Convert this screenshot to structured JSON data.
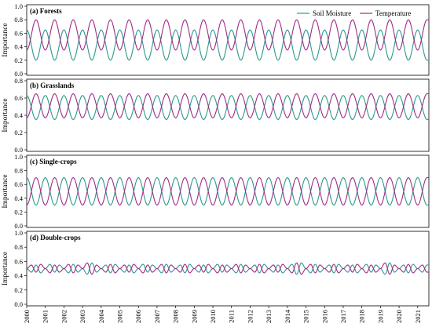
{
  "chart_data": [
    {
      "type": "line",
      "title": "(a) Forests",
      "ylabel": "Importance",
      "ylim": [
        0,
        1
      ],
      "yticks": [
        "0.0",
        "0.2",
        "0.4",
        "0.6",
        "0.8",
        "1.0"
      ],
      "x_range": [
        2000,
        2021.6
      ],
      "legend": {
        "placement": "top-right",
        "entries": [
          "Soil Moisture",
          "Temperature"
        ]
      },
      "pattern": "annual cycle; Temperature peaks mid-year, Soil Moisture mirrors it; values sampled every half year",
      "x": [
        2000.0,
        2000.5,
        2001.0,
        2001.5,
        2002.0,
        2002.5,
        2003.0,
        2003.5,
        2004.0,
        2004.5,
        2005.0,
        2005.5,
        2006.0,
        2006.5,
        2007.0,
        2007.5,
        2008.0,
        2008.5,
        2009.0,
        2009.5,
        2010.0,
        2010.5,
        2011.0,
        2011.5,
        2012.0,
        2012.5,
        2013.0,
        2013.5,
        2014.0,
        2014.5,
        2015.0,
        2015.5,
        2016.0,
        2016.5,
        2017.0,
        2017.5,
        2018.0,
        2018.5,
        2019.0,
        2019.5,
        2020.0,
        2020.5,
        2021.0,
        2021.5
      ],
      "series": [
        {
          "name": "Soil Moisture",
          "color": "#2a9a8a",
          "values": [
            0.65,
            0.2,
            0.65,
            0.2,
            0.65,
            0.2,
            0.65,
            0.2,
            0.65,
            0.2,
            0.65,
            0.2,
            0.65,
            0.2,
            0.65,
            0.2,
            0.65,
            0.2,
            0.65,
            0.2,
            0.65,
            0.2,
            0.65,
            0.2,
            0.65,
            0.2,
            0.65,
            0.2,
            0.65,
            0.2,
            0.65,
            0.2,
            0.65,
            0.2,
            0.65,
            0.2,
            0.65,
            0.2,
            0.65,
            0.2,
            0.65,
            0.2,
            0.65,
            0.2
          ]
        },
        {
          "name": "Temperature",
          "color": "#a02a8a",
          "values": [
            0.35,
            0.8,
            0.35,
            0.8,
            0.35,
            0.8,
            0.35,
            0.8,
            0.35,
            0.8,
            0.35,
            0.8,
            0.35,
            0.8,
            0.35,
            0.8,
            0.35,
            0.8,
            0.35,
            0.8,
            0.35,
            0.8,
            0.35,
            0.8,
            0.35,
            0.8,
            0.35,
            0.8,
            0.35,
            0.8,
            0.35,
            0.8,
            0.35,
            0.8,
            0.35,
            0.8,
            0.35,
            0.8,
            0.35,
            0.8,
            0.35,
            0.8,
            0.35,
            0.8
          ]
        }
      ]
    },
    {
      "type": "line",
      "title": "(b) Grasslands",
      "ylabel": "Importance",
      "ylim": [
        0,
        0.8
      ],
      "yticks": [
        "0.0",
        "0.2",
        "0.4",
        "0.6",
        "0.8"
      ],
      "x_range": [
        2000,
        2021.6
      ],
      "x": [
        2000.0,
        2000.5,
        2001.0,
        2001.5,
        2002.0,
        2002.5,
        2003.0,
        2003.5,
        2004.0,
        2004.5,
        2005.0,
        2005.5,
        2006.0,
        2006.5,
        2007.0,
        2007.5,
        2008.0,
        2008.5,
        2009.0,
        2009.5,
        2010.0,
        2010.5,
        2011.0,
        2011.5,
        2012.0,
        2012.5,
        2013.0,
        2013.5,
        2014.0,
        2014.5,
        2015.0,
        2015.5,
        2016.0,
        2016.5,
        2017.0,
        2017.5,
        2018.0,
        2018.5,
        2019.0,
        2019.5,
        2020.0,
        2020.5,
        2021.0,
        2021.5
      ],
      "series": [
        {
          "name": "Soil Moisture",
          "color": "#2a9a8a",
          "values": [
            0.63,
            0.35,
            0.63,
            0.35,
            0.63,
            0.35,
            0.63,
            0.35,
            0.63,
            0.35,
            0.63,
            0.35,
            0.63,
            0.35,
            0.63,
            0.35,
            0.63,
            0.35,
            0.63,
            0.35,
            0.63,
            0.35,
            0.63,
            0.35,
            0.63,
            0.35,
            0.63,
            0.35,
            0.63,
            0.35,
            0.63,
            0.35,
            0.63,
            0.35,
            0.63,
            0.35,
            0.63,
            0.35,
            0.63,
            0.35,
            0.63,
            0.35,
            0.63,
            0.35
          ]
        },
        {
          "name": "Temperature",
          "color": "#a02a8a",
          "values": [
            0.37,
            0.65,
            0.37,
            0.65,
            0.37,
            0.65,
            0.37,
            0.65,
            0.37,
            0.65,
            0.37,
            0.65,
            0.37,
            0.65,
            0.37,
            0.65,
            0.37,
            0.65,
            0.37,
            0.65,
            0.37,
            0.65,
            0.37,
            0.65,
            0.37,
            0.65,
            0.37,
            0.65,
            0.37,
            0.65,
            0.37,
            0.65,
            0.37,
            0.65,
            0.37,
            0.65,
            0.37,
            0.65,
            0.37,
            0.65,
            0.37,
            0.65,
            0.37,
            0.65
          ]
        }
      ]
    },
    {
      "type": "line",
      "title": "(c) Single-crops",
      "ylabel": "Importance",
      "ylim": [
        0,
        1
      ],
      "yticks": [
        "0.0",
        "0.2",
        "0.4",
        "0.6",
        "0.8",
        "1.0"
      ],
      "x_range": [
        2000,
        2021.6
      ],
      "x": [
        2000.0,
        2000.5,
        2001.0,
        2001.5,
        2002.0,
        2002.5,
        2003.0,
        2003.5,
        2004.0,
        2004.5,
        2005.0,
        2005.5,
        2006.0,
        2006.5,
        2007.0,
        2007.5,
        2008.0,
        2008.5,
        2009.0,
        2009.5,
        2010.0,
        2010.5,
        2011.0,
        2011.5,
        2012.0,
        2012.5,
        2013.0,
        2013.5,
        2014.0,
        2014.5,
        2015.0,
        2015.5,
        2016.0,
        2016.5,
        2017.0,
        2017.5,
        2018.0,
        2018.5,
        2019.0,
        2019.5,
        2020.0,
        2020.5,
        2021.0,
        2021.5
      ],
      "series": [
        {
          "name": "Soil Moisture",
          "color": "#2a9a8a",
          "values": [
            0.7,
            0.3,
            0.7,
            0.3,
            0.7,
            0.3,
            0.7,
            0.3,
            0.7,
            0.3,
            0.7,
            0.3,
            0.7,
            0.3,
            0.7,
            0.3,
            0.7,
            0.3,
            0.7,
            0.3,
            0.7,
            0.3,
            0.7,
            0.3,
            0.7,
            0.3,
            0.7,
            0.3,
            0.7,
            0.3,
            0.7,
            0.3,
            0.7,
            0.3,
            0.7,
            0.3,
            0.7,
            0.3,
            0.7,
            0.3,
            0.7,
            0.3,
            0.7,
            0.3
          ]
        },
        {
          "name": "Temperature",
          "color": "#a02a8a",
          "values": [
            0.3,
            0.7,
            0.3,
            0.7,
            0.3,
            0.7,
            0.3,
            0.7,
            0.3,
            0.7,
            0.3,
            0.7,
            0.3,
            0.7,
            0.3,
            0.7,
            0.3,
            0.7,
            0.3,
            0.7,
            0.3,
            0.7,
            0.3,
            0.7,
            0.3,
            0.7,
            0.3,
            0.7,
            0.3,
            0.7,
            0.3,
            0.7,
            0.3,
            0.7,
            0.3,
            0.7,
            0.3,
            0.7,
            0.3,
            0.7,
            0.3,
            0.7,
            0.3,
            0.7
          ]
        }
      ]
    },
    {
      "type": "line",
      "title": "(d) Double-crops",
      "ylabel": "Importance",
      "ylim": [
        0,
        1
      ],
      "yticks": [
        "0.0",
        "0.2",
        "0.4",
        "0.6",
        "0.8",
        "1.0"
      ],
      "x_range": [
        2000,
        2021.6
      ],
      "xlabel": "",
      "xticks": [
        "2000",
        "2001",
        "2002",
        "2003",
        "2004",
        "2005",
        "2006",
        "2007",
        "2008",
        "2009",
        "2010",
        "2011",
        "2012",
        "2013",
        "2014",
        "2015",
        "2016",
        "2017",
        "2018",
        "2019",
        "2020",
        "2021"
      ],
      "x": [
        2000.0,
        2000.25,
        2000.5,
        2000.75,
        2001.0,
        2001.25,
        2001.5,
        2001.75,
        2002.0,
        2002.25,
        2002.5,
        2002.75,
        2003.0,
        2003.25,
        2003.5,
        2003.75,
        2004.0,
        2004.25,
        2004.5,
        2004.75,
        2005.0,
        2005.25,
        2005.5,
        2005.75,
        2006.0,
        2006.25,
        2006.5,
        2006.75,
        2007.0,
        2007.25,
        2007.5,
        2007.75,
        2008.0,
        2008.25,
        2008.5,
        2008.75,
        2009.0,
        2009.25,
        2009.5,
        2009.75,
        2010.0,
        2010.25,
        2010.5,
        2010.75,
        2011.0,
        2011.25,
        2011.5,
        2011.75,
        2012.0,
        2012.25,
        2012.5,
        2012.75,
        2013.0,
        2013.25,
        2013.5,
        2013.75,
        2014.0,
        2014.25,
        2014.5,
        2014.75,
        2015.0,
        2015.25,
        2015.5,
        2015.75,
        2016.0,
        2016.25,
        2016.5,
        2016.75,
        2017.0,
        2017.25,
        2017.5,
        2017.75,
        2018.0,
        2018.25,
        2018.5,
        2018.75,
        2019.0,
        2019.25,
        2019.5,
        2019.75,
        2020.0,
        2020.25,
        2020.5,
        2020.75,
        2021.0,
        2021.25,
        2021.5
      ],
      "series": [
        {
          "name": "Soil Moisture",
          "color": "#2a9a8a",
          "values": [
            0.5,
            0.45,
            0.55,
            0.44,
            0.5,
            0.56,
            0.45,
            0.55,
            0.5,
            0.44,
            0.56,
            0.45,
            0.5,
            0.42,
            0.58,
            0.45,
            0.5,
            0.55,
            0.44,
            0.56,
            0.5,
            0.45,
            0.55,
            0.44,
            0.5,
            0.56,
            0.45,
            0.55,
            0.5,
            0.44,
            0.56,
            0.45,
            0.5,
            0.55,
            0.44,
            0.56,
            0.5,
            0.45,
            0.55,
            0.44,
            0.5,
            0.56,
            0.45,
            0.55,
            0.5,
            0.44,
            0.56,
            0.45,
            0.5,
            0.55,
            0.44,
            0.56,
            0.5,
            0.45,
            0.55,
            0.44,
            0.5,
            0.56,
            0.42,
            0.58,
            0.5,
            0.44,
            0.56,
            0.45,
            0.5,
            0.55,
            0.44,
            0.56,
            0.5,
            0.45,
            0.55,
            0.44,
            0.5,
            0.56,
            0.45,
            0.55,
            0.5,
            0.42,
            0.58,
            0.45,
            0.5,
            0.55,
            0.44,
            0.56,
            0.5,
            0.45,
            0.55
          ]
        },
        {
          "name": "Temperature",
          "color": "#a02a8a",
          "values": [
            0.5,
            0.55,
            0.45,
            0.56,
            0.5,
            0.44,
            0.55,
            0.45,
            0.5,
            0.56,
            0.44,
            0.55,
            0.5,
            0.58,
            0.42,
            0.55,
            0.5,
            0.45,
            0.56,
            0.44,
            0.5,
            0.55,
            0.45,
            0.56,
            0.5,
            0.44,
            0.55,
            0.45,
            0.5,
            0.56,
            0.44,
            0.55,
            0.5,
            0.45,
            0.56,
            0.44,
            0.5,
            0.55,
            0.45,
            0.56,
            0.5,
            0.44,
            0.55,
            0.45,
            0.5,
            0.56,
            0.44,
            0.55,
            0.5,
            0.45,
            0.56,
            0.44,
            0.5,
            0.55,
            0.45,
            0.56,
            0.5,
            0.44,
            0.58,
            0.42,
            0.5,
            0.56,
            0.44,
            0.55,
            0.5,
            0.45,
            0.56,
            0.44,
            0.5,
            0.55,
            0.45,
            0.56,
            0.5,
            0.44,
            0.55,
            0.45,
            0.5,
            0.58,
            0.42,
            0.55,
            0.5,
            0.45,
            0.56,
            0.44,
            0.5,
            0.55,
            0.45
          ]
        }
      ]
    }
  ]
}
